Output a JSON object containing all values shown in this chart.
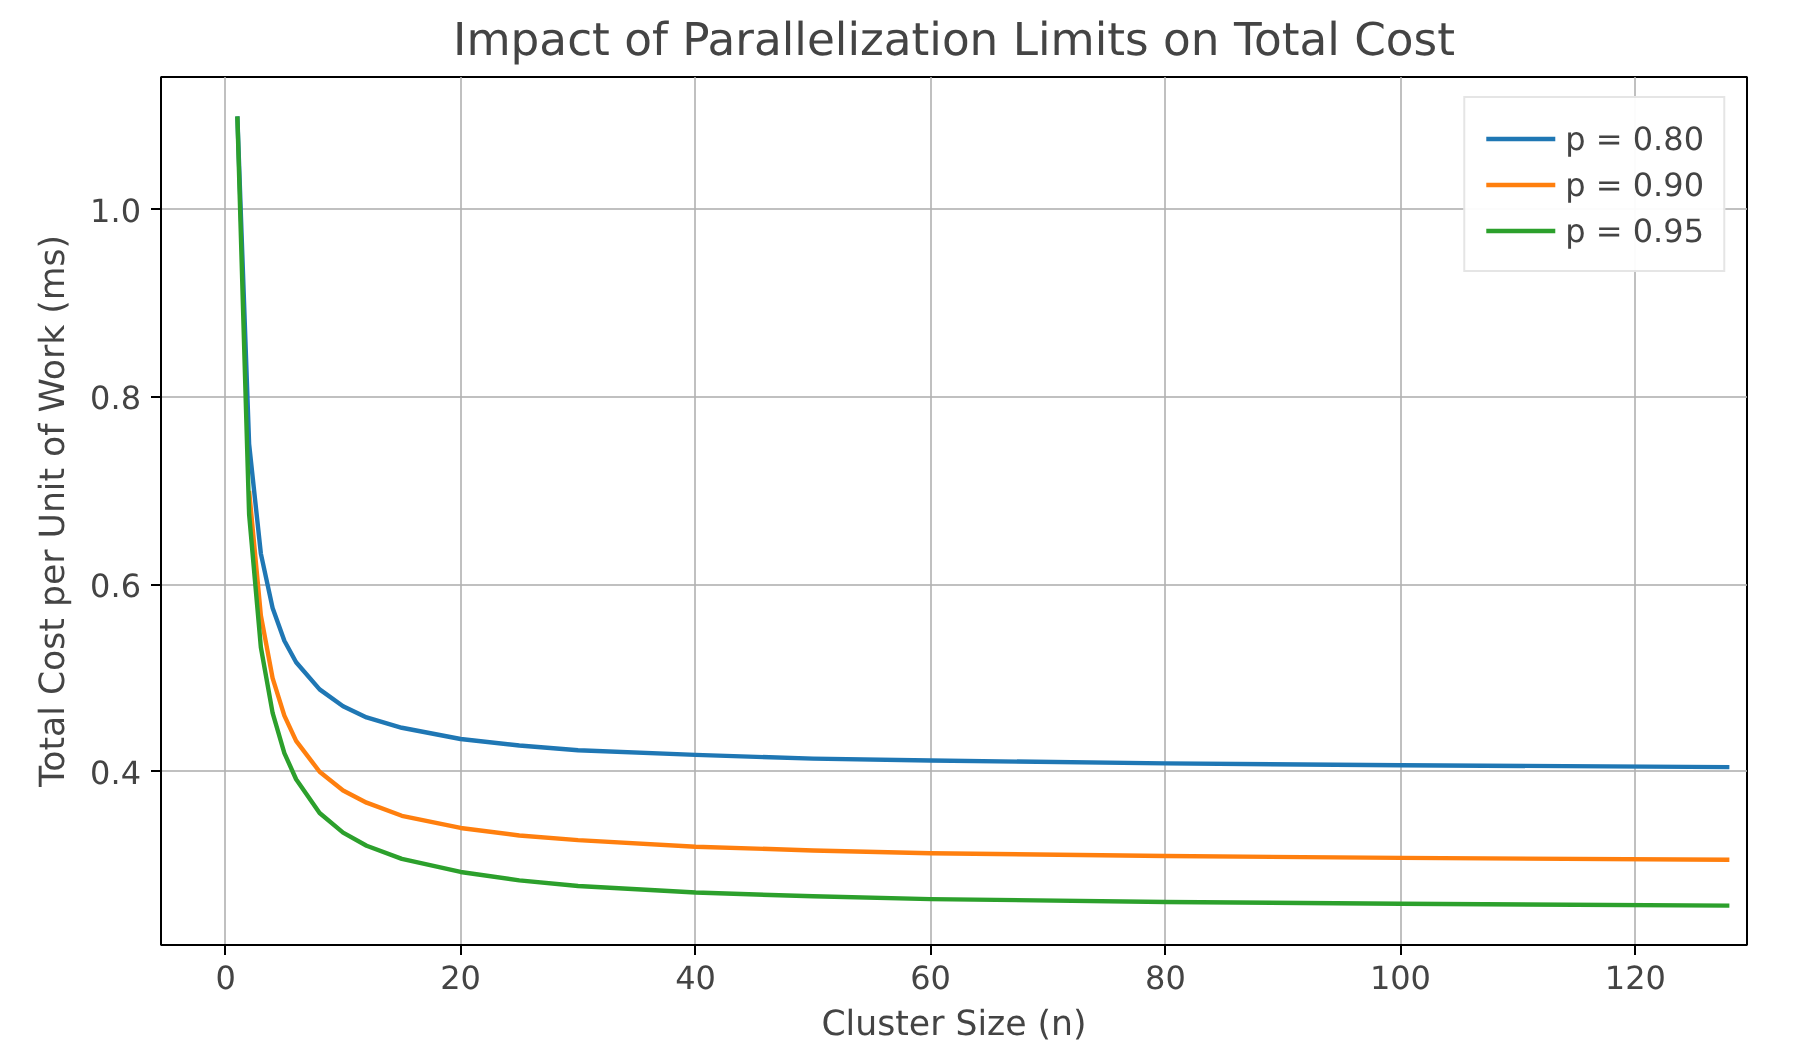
{
  "chart_data": {
    "type": "line",
    "title": "Impact of Parallelization Limits on Total Cost",
    "xlabel": "Cluster Size (n)",
    "ylabel": "Total Cost per Unit of Work (ms)",
    "x": [
      1,
      2,
      3,
      4,
      5,
      6,
      8,
      10,
      12,
      15,
      20,
      25,
      30,
      40,
      50,
      60,
      80,
      100,
      128
    ],
    "series": [
      {
        "name": "p = 0.80",
        "color": "#1f77b4",
        "values": [
          1.1,
          0.75,
          0.633,
          0.575,
          0.54,
          0.517,
          0.488,
          0.47,
          0.458,
          0.447,
          0.435,
          0.428,
          0.423,
          0.418,
          0.414,
          0.412,
          0.409,
          0.407,
          0.405
        ]
      },
      {
        "name": "p = 0.90",
        "color": "#ff7f0e",
        "values": [
          null,
          0.7,
          0.567,
          0.5,
          0.46,
          0.433,
          0.4,
          0.38,
          0.367,
          0.353,
          0.34,
          0.332,
          0.327,
          0.32,
          0.316,
          0.313,
          0.31,
          0.308,
          0.306
        ]
      },
      {
        "name": "p = 0.95",
        "color": "#2ca02c",
        "values": [
          1.1,
          0.675,
          0.533,
          0.463,
          0.42,
          0.392,
          0.356,
          0.335,
          0.321,
          0.307,
          0.293,
          0.284,
          0.278,
          0.271,
          0.267,
          0.264,
          0.261,
          0.259,
          0.257
        ]
      }
    ],
    "xlim": [
      -5.5,
      129.5
    ],
    "ylim": [
      0.215,
      1.142
    ],
    "xticks": [
      0,
      20,
      40,
      60,
      80,
      100,
      120
    ],
    "yticks": [
      {
        "value": 0.4,
        "label": "0.4"
      },
      {
        "value": 0.6,
        "label": "0.6"
      },
      {
        "value": 0.8,
        "label": "0.8"
      },
      {
        "value": 1.0,
        "label": "1.0"
      }
    ],
    "grid": true,
    "legend": "top right",
    "marker": "none",
    "line_style": "solid"
  }
}
